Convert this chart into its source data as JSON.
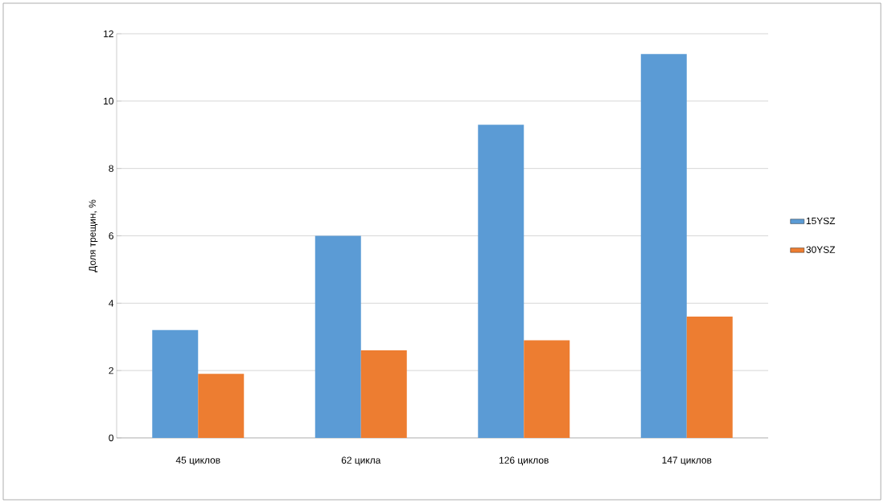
{
  "chart_data": {
    "type": "bar",
    "ylabel": "Доля трещин, %",
    "categories": [
      "45 циклов",
      "62 цикла",
      "126 циклов",
      "147 циклов"
    ],
    "series": [
      {
        "name": "15YSZ",
        "color": "#5b9bd5",
        "values": [
          3.2,
          6.0,
          9.3,
          11.4
        ]
      },
      {
        "name": "30YSZ",
        "color": "#ed7d31",
        "values": [
          1.9,
          2.6,
          2.9,
          3.6
        ]
      }
    ],
    "ylim": [
      0,
      12
    ],
    "yticks": [
      0,
      2,
      4,
      6,
      8,
      10,
      12
    ],
    "grid": "y",
    "legend": "right"
  }
}
